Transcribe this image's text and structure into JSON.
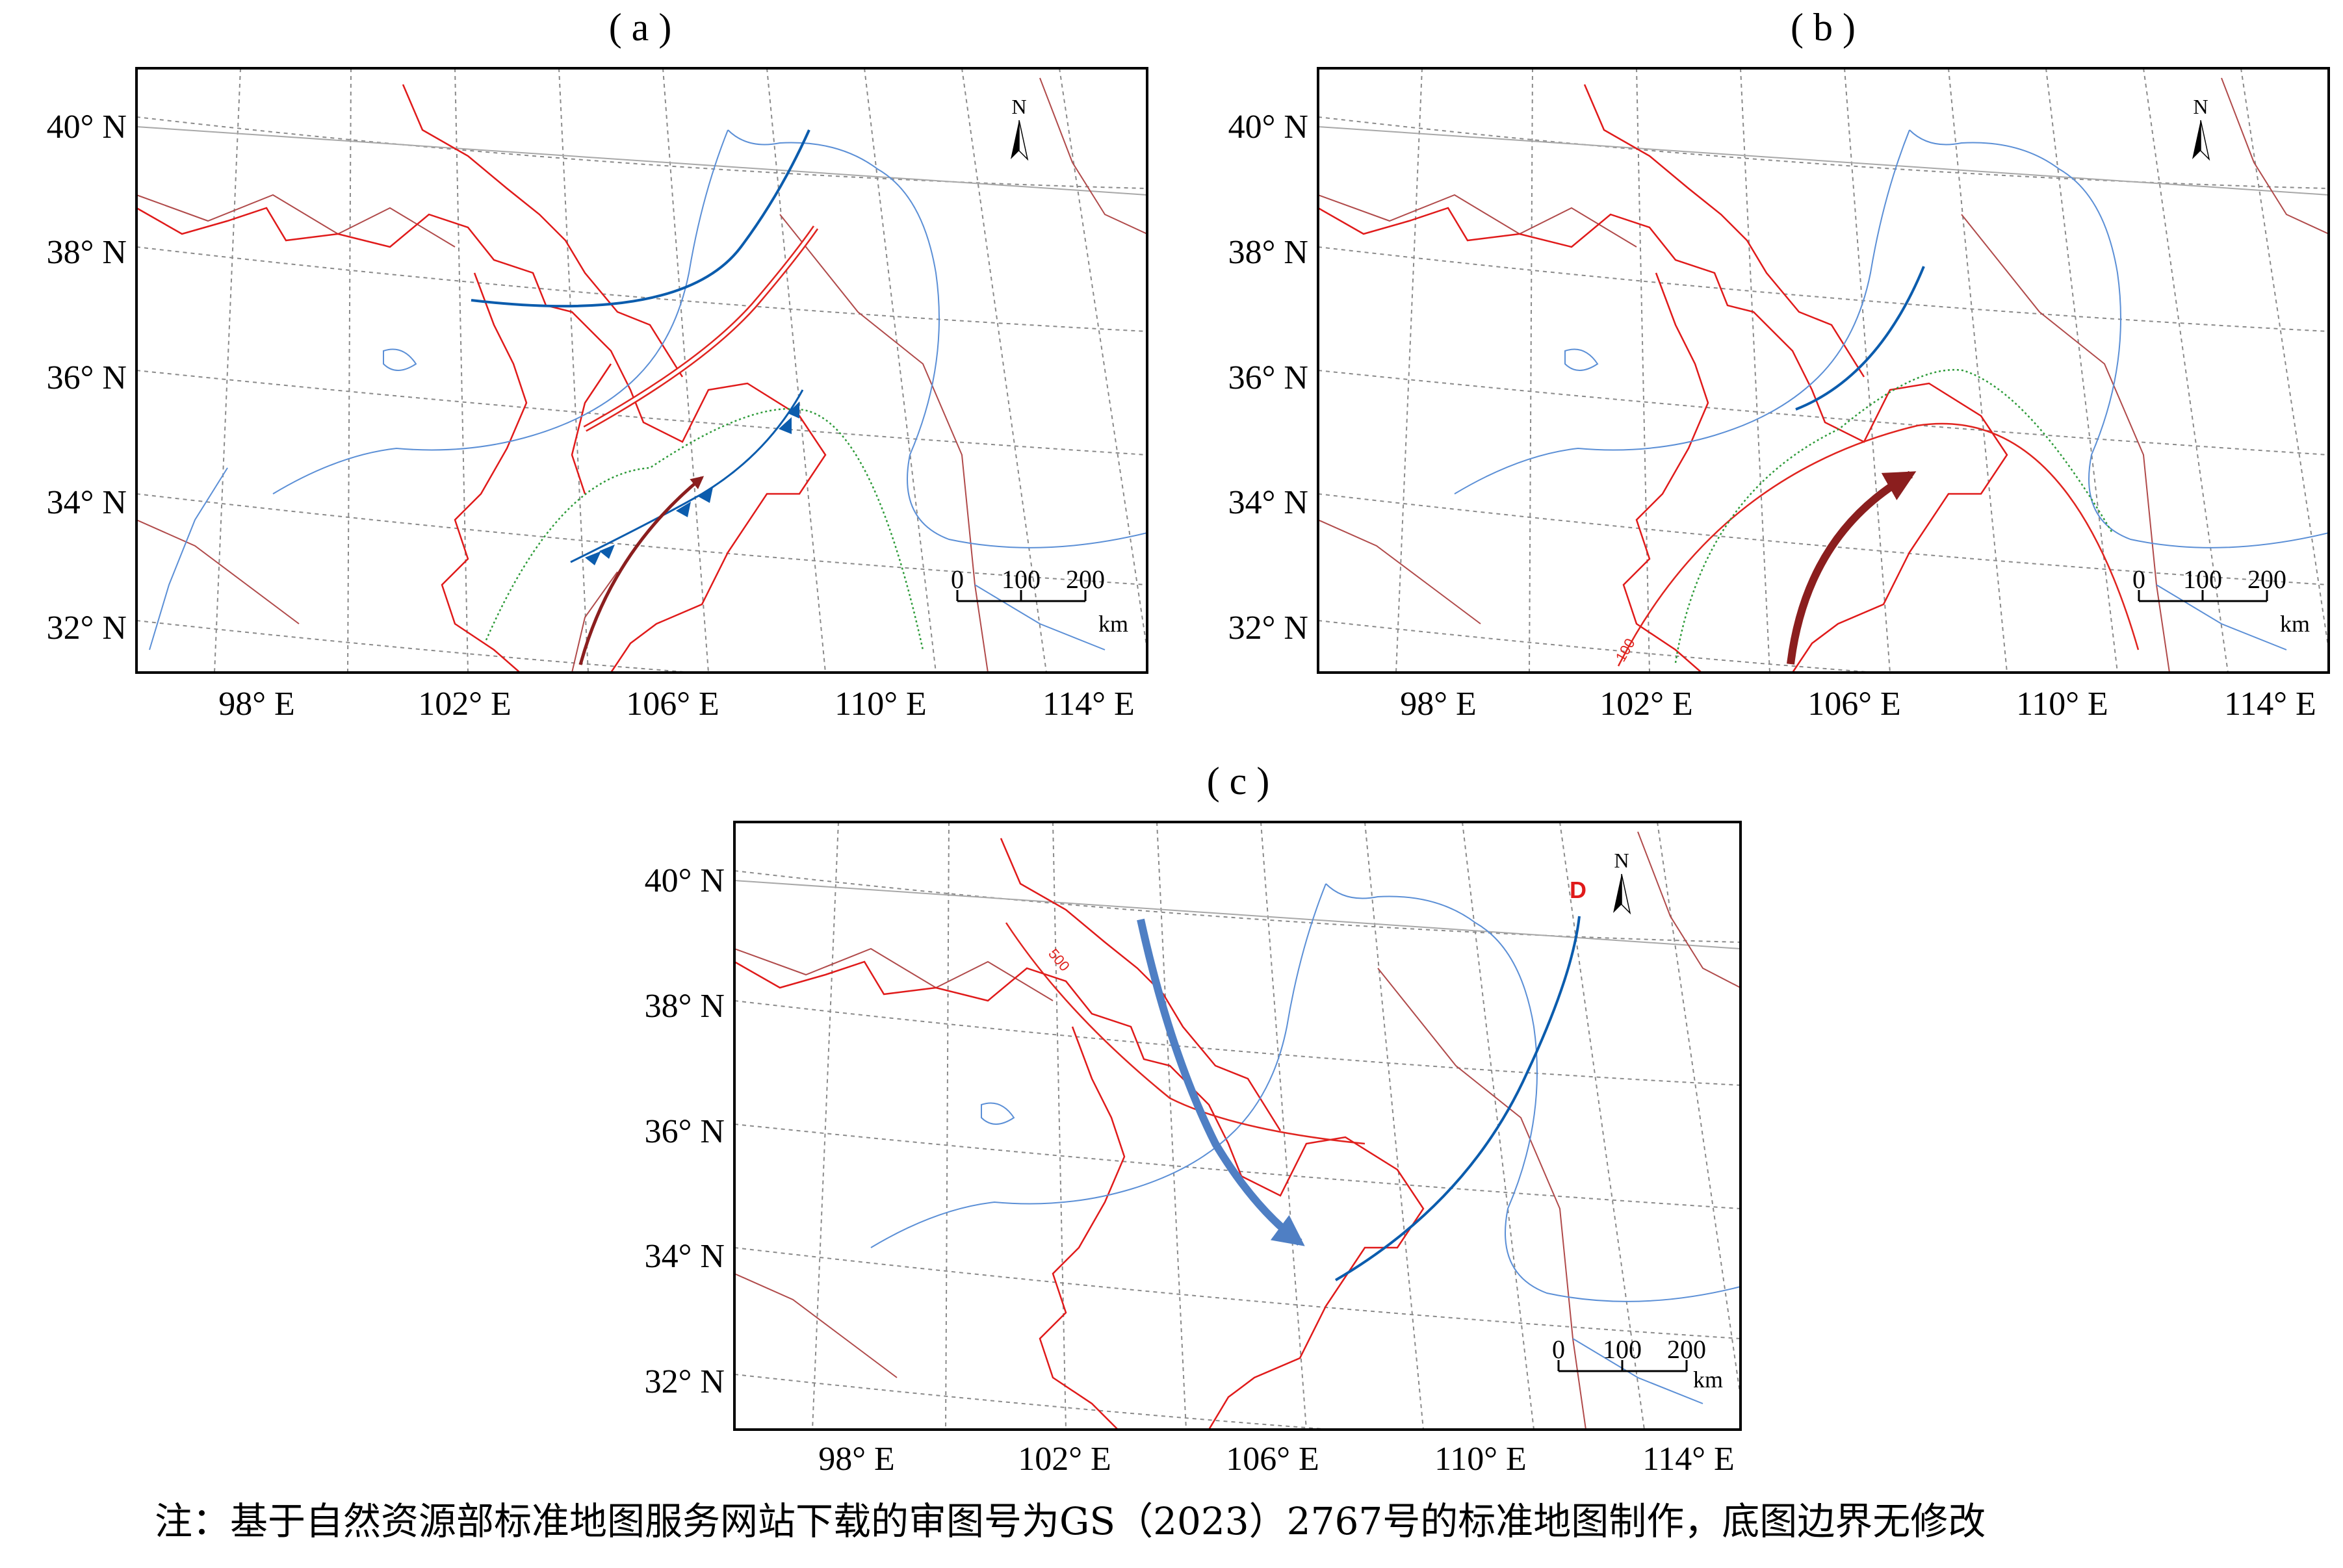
{
  "panels": [
    {
      "id": "a",
      "label": "( a )",
      "lat_labels": [
        "40° N",
        "38° N",
        "36° N",
        "34° N",
        "32° N"
      ],
      "lon_labels": [
        "98° E",
        "102° E",
        "106° E",
        "110° E",
        "114° E"
      ],
      "north_arrow": "N",
      "scale_ticks": [
        "0",
        "100",
        "200"
      ],
      "scale_unit": "km",
      "features": [
        "trough-line",
        "shear-line",
        "cold-front",
        "warm-moist-flow-arrow",
        "588-contour"
      ]
    },
    {
      "id": "b",
      "label": "( b )",
      "lat_labels": [
        "40° N",
        "38° N",
        "36° N",
        "34° N",
        "32° N"
      ],
      "lon_labels": [
        "98° E",
        "102° E",
        "106° E",
        "110° E",
        "114° E"
      ],
      "north_arrow": "N",
      "scale_ticks": [
        "0",
        "100",
        "200"
      ],
      "scale_unit": "km",
      "contour_label": "100",
      "features": [
        "trough-line",
        "contour-100",
        "green-contour",
        "warm-moist-flow-arrow"
      ]
    },
    {
      "id": "c",
      "label": "( c )",
      "lat_labels": [
        "40° N",
        "38° N",
        "36° N",
        "34° N",
        "32° N"
      ],
      "lon_labels": [
        "98° E",
        "102° E",
        "106° E",
        "110° E",
        "114° E"
      ],
      "north_arrow": "N",
      "scale_ticks": [
        "0",
        "100",
        "200"
      ],
      "scale_unit": "km",
      "contour_label": "500",
      "center_label": "D",
      "features": [
        "trough-line",
        "contour-500",
        "cold-air-arrow",
        "low-center-D"
      ]
    }
  ],
  "colors": {
    "province_border": "#e01a1a",
    "country_border": "#b04a4a",
    "river": "#5b8fd6",
    "graticule": "#8a8a8a",
    "trough": "#0b5cad",
    "shear": "#e0241f",
    "contour_green": "#2e9b3a",
    "warm_arrow": "#8b1e1e",
    "cold_arrow": "#4f7fc4",
    "center_D": "#e01a1a"
  },
  "footnote": "注：基于自然资源部标准地图服务网站下载的审图号为GS（2023）2767号的标准地图制作，底图边界无修改"
}
